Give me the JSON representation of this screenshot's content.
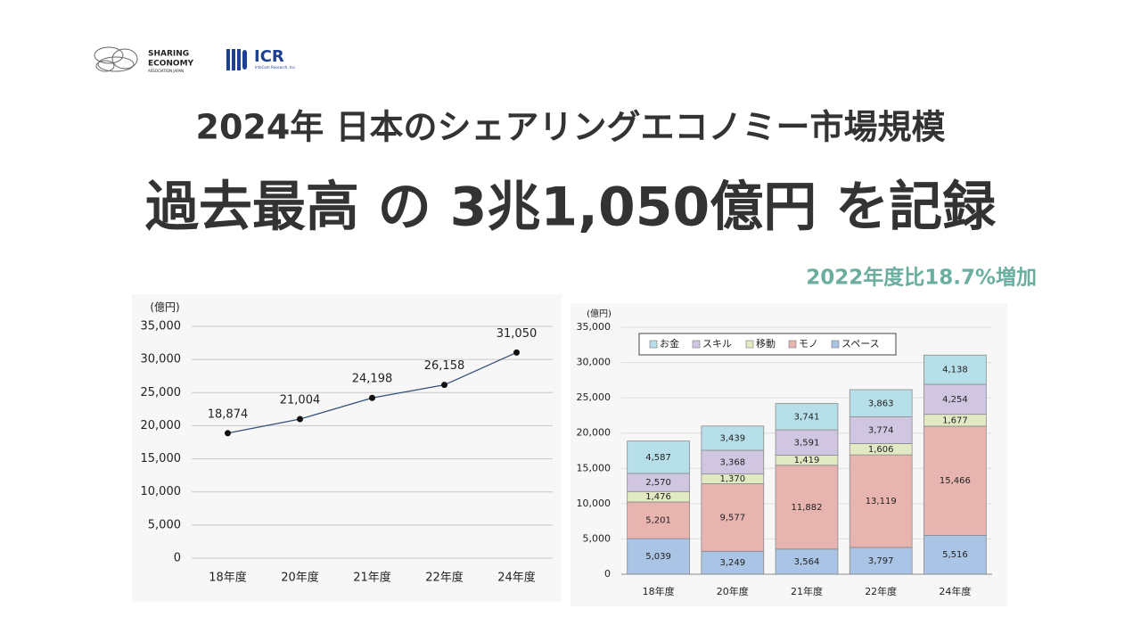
{
  "header": {
    "logo_1": [
      "SHARING",
      "ECONOMY",
      "ASSOCIATION JAPAN"
    ],
    "logo_2": "ICR",
    "logo_2_sub": "InfoCom Research, Inc.",
    "title": "2024年 日本のシェアリングエコノミー市場規模",
    "headline": "過去最高 の 3兆1,050億円 を記録",
    "subtitle": "2022年度比18.7%増加"
  },
  "chart_data": [
    {
      "type": "line",
      "y_label": "(億円)",
      "categories": [
        "18年度",
        "20年度",
        "21年度",
        "22年度",
        "24年度"
      ],
      "values": [
        18874,
        21004,
        24198,
        26158,
        31050
      ],
      "value_labels": [
        "18,874",
        "21,004",
        "24,198",
        "26,158",
        "31,050"
      ],
      "color": "#34507a",
      "marker_color": "#111111",
      "ylim": [
        0,
        35000
      ],
      "yticks": [
        0,
        {
          "value": 5000,
          "label": "5,000"
        },
        {
          "value": 10000,
          "label": "10,000"
        },
        {
          "value": 15000,
          "label": "15,000"
        },
        {
          "value": 20000,
          "label": "20,000"
        },
        {
          "value": 25000,
          "label": "25,000"
        },
        {
          "value": 30000,
          "label": "30,000"
        },
        {
          "value": 35000,
          "label": "35,000"
        }
      ],
      "grid": true
    },
    {
      "type": "bar",
      "stacked": true,
      "y_label": "(億円)",
      "categories": [
        "18年度",
        "20年度",
        "21年度",
        "22年度",
        "24年度"
      ],
      "series": [
        {
          "name": "スペース",
          "color": "#a9c4e4",
          "values": [
            5039,
            3249,
            3564,
            3797,
            5516
          ],
          "value_labels": [
            "5,039",
            "3,249",
            "3,564",
            "3,797",
            "5,516"
          ]
        },
        {
          "name": "モノ",
          "color": "#e8b4b0",
          "values": [
            5201,
            9577,
            11882,
            13119,
            15466
          ],
          "value_labels": [
            "5,201",
            "9,577",
            "11,882",
            "13,119",
            "15,466"
          ]
        },
        {
          "name": "移動",
          "color": "#e2eac4",
          "values": [
            1476,
            1370,
            1419,
            1606,
            1677
          ],
          "value_labels": [
            "1,476",
            "1,370",
            "1,419",
            "1,606",
            "1,677"
          ]
        },
        {
          "name": "スキル",
          "color": "#d0c6e2",
          "values": [
            2570,
            3368,
            3591,
            3774,
            4254
          ],
          "value_labels": [
            "2,570",
            "3,368",
            "3,591",
            "3,774",
            "4,254"
          ]
        },
        {
          "name": "お金",
          "color": "#b6dfe9",
          "values": [
            4587,
            3439,
            3741,
            3863,
            4138
          ],
          "value_labels": [
            "4,587",
            "3,439",
            "3,741",
            "3,863",
            "4,138"
          ]
        }
      ],
      "ylim": [
        0,
        35000
      ],
      "yticks": [
        0,
        {
          "value": 5000,
          "label": "5,000"
        },
        {
          "value": 10000,
          "label": "10,000"
        },
        {
          "value": 15000,
          "label": "15,000"
        },
        {
          "value": 20000,
          "label": "20,000"
        },
        {
          "value": 25000,
          "label": "25,000"
        },
        {
          "value": 30000,
          "label": "30,000"
        },
        {
          "value": 35000,
          "label": "35,000"
        }
      ],
      "grid": true
    }
  ]
}
